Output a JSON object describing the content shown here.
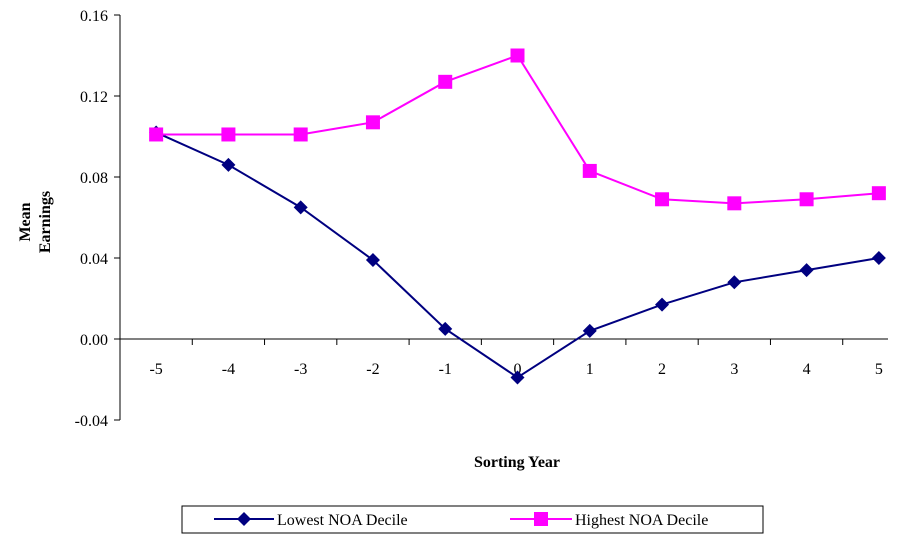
{
  "chart_data": {
    "type": "line",
    "x": [
      -5,
      -4,
      -3,
      -2,
      -1,
      0,
      1,
      2,
      3,
      4,
      5
    ],
    "x_tick_labels": [
      "-5",
      "-4",
      "-3",
      "-2",
      "-1",
      "0",
      "1",
      "2",
      "3",
      "4",
      "5"
    ],
    "series": [
      {
        "name": "Lowest NOA Decile",
        "color": "#000080",
        "marker": "diamond",
        "values": [
          0.102,
          0.086,
          0.065,
          0.039,
          0.005,
          -0.019,
          0.004,
          0.017,
          0.028,
          0.034,
          0.04
        ]
      },
      {
        "name": "Highest NOA Decile",
        "color": "#FF00FF",
        "marker": "square",
        "values": [
          0.101,
          0.101,
          0.101,
          0.107,
          0.127,
          0.14,
          0.083,
          0.069,
          0.067,
          0.069,
          0.072
        ]
      }
    ],
    "ylim": [
      -0.04,
      0.16
    ],
    "y_ticks": [
      -0.04,
      0.0,
      0.04,
      0.08,
      0.12,
      0.16
    ],
    "y_tick_labels": [
      "-0.04",
      "0.00",
      "0.04",
      "0.08",
      "0.12",
      "0.16"
    ],
    "xlabel": "Sorting Year",
    "ylabel_lines": [
      "Mean",
      "Earnings"
    ],
    "title": "",
    "grid": false,
    "legend_position": "bottom"
  }
}
